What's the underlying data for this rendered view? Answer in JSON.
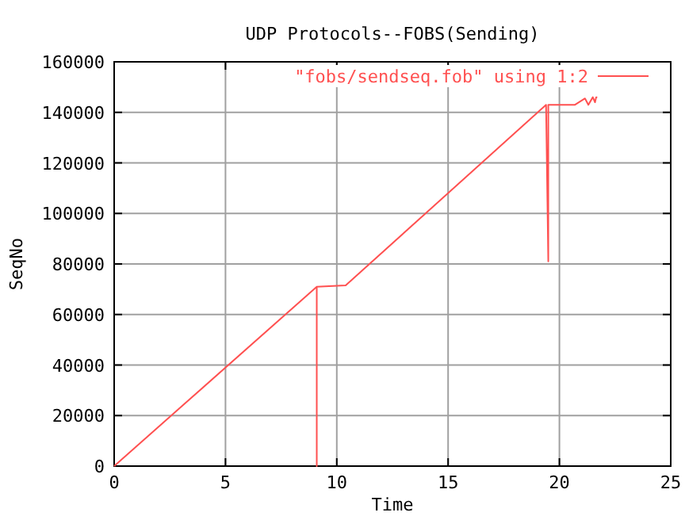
{
  "chart_data": {
    "type": "line",
    "title": "UDP Protocols--FOBS(Sending)",
    "xlabel": "Time",
    "ylabel": "SeqNo",
    "xlim": [
      0,
      25
    ],
    "ylim": [
      0,
      160000
    ],
    "xticks": [
      0,
      5,
      10,
      15,
      20,
      25
    ],
    "yticks": [
      0,
      20000,
      40000,
      60000,
      80000,
      100000,
      120000,
      140000,
      160000
    ],
    "grid": true,
    "legend": "top right",
    "marker": "none",
    "line_style": "solid",
    "series": [
      {
        "name": "\"fobs/sendseq.fob\" using 1:2",
        "color": "#ff5050",
        "x": [
          0,
          9.1,
          9.1,
          9.1,
          10.4,
          19.4,
          19.5,
          19.5,
          20.7,
          21.15,
          21.3,
          21.5,
          21.6,
          21.65,
          21.7
        ],
        "values": [
          0,
          71000,
          0,
          71000,
          71500,
          143000,
          81000,
          143000,
          143000,
          145500,
          143000,
          146000,
          144000,
          146000,
          146000
        ]
      }
    ]
  }
}
